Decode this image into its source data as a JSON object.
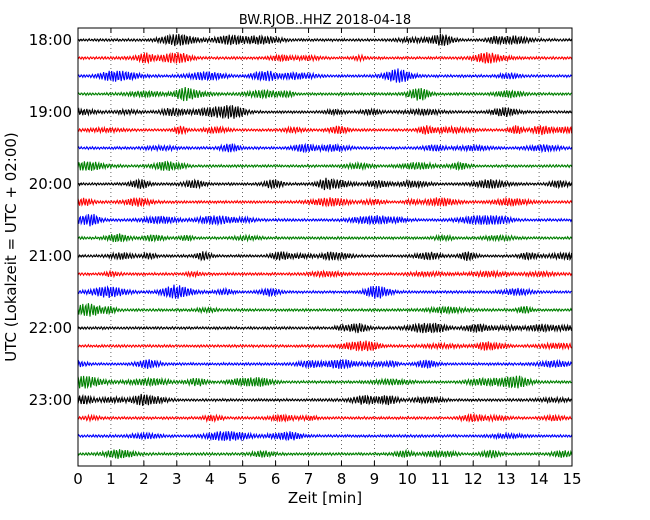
{
  "chart_data": {
    "type": "line",
    "title": "BW.RJOB..HHZ 2018-04-18",
    "xlabel": "Zeit  [min]",
    "ylabel": "UTC (Lokalzeit = UTC + 02:00)",
    "xlim": [
      0,
      15
    ],
    "x_ticks": [
      "0",
      "1",
      "2",
      "3",
      "4",
      "5",
      "6",
      "7",
      "8",
      "9",
      "10",
      "11",
      "12",
      "13",
      "14",
      "15"
    ],
    "y_ticks": [
      "18:00",
      "19:00",
      "20:00",
      "21:00",
      "22:00",
      "23:00"
    ],
    "grid": "vertical-dotted",
    "series_colors": [
      "#000000",
      "#ff0000",
      "#0000ff",
      "#008000"
    ],
    "rows": [
      {
        "time": "18:00",
        "color": "#000000"
      },
      {
        "time": "18:15",
        "color": "#ff0000"
      },
      {
        "time": "18:30",
        "color": "#0000ff"
      },
      {
        "time": "18:45",
        "color": "#008000"
      },
      {
        "time": "19:00",
        "color": "#000000"
      },
      {
        "time": "19:15",
        "color": "#ff0000"
      },
      {
        "time": "19:30",
        "color": "#0000ff"
      },
      {
        "time": "19:45",
        "color": "#008000"
      },
      {
        "time": "20:00",
        "color": "#000000"
      },
      {
        "time": "20:15",
        "color": "#ff0000"
      },
      {
        "time": "20:30",
        "color": "#0000ff"
      },
      {
        "time": "20:45",
        "color": "#008000"
      },
      {
        "time": "21:00",
        "color": "#000000"
      },
      {
        "time": "21:15",
        "color": "#ff0000"
      },
      {
        "time": "21:30",
        "color": "#0000ff"
      },
      {
        "time": "21:45",
        "color": "#008000"
      },
      {
        "time": "22:00",
        "color": "#000000"
      },
      {
        "time": "22:15",
        "color": "#ff0000"
      },
      {
        "time": "22:30",
        "color": "#0000ff"
      },
      {
        "time": "22:45",
        "color": "#008000"
      },
      {
        "time": "23:00",
        "color": "#000000"
      },
      {
        "time": "23:15",
        "color": "#ff0000"
      },
      {
        "time": "23:30",
        "color": "#0000ff"
      },
      {
        "time": "23:45",
        "color": "#008000"
      }
    ]
  }
}
